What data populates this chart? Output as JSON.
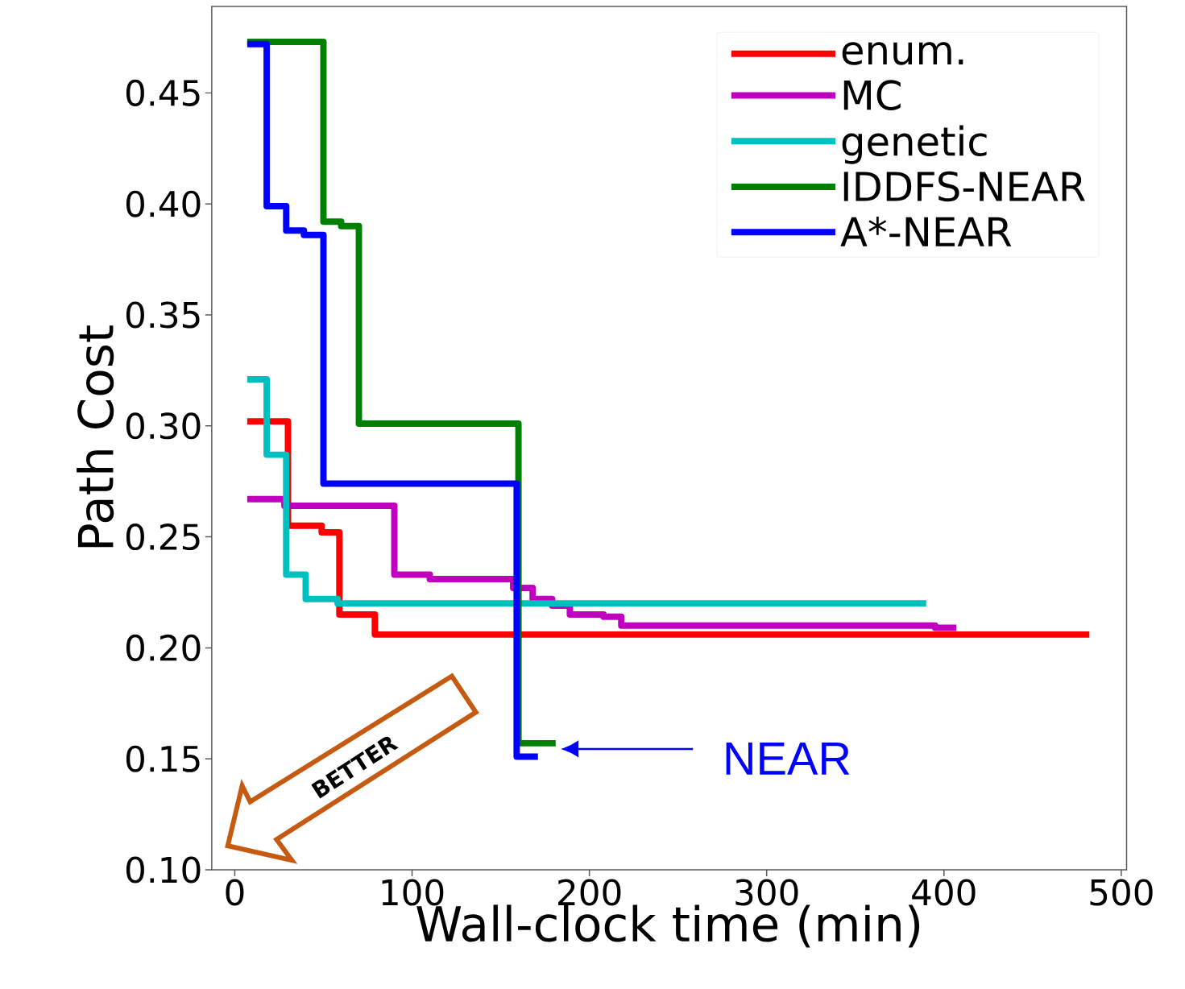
{
  "chart_data": {
    "type": "step",
    "xlabel": "Wall-clock time (min)",
    "ylabel": "Path Cost",
    "xlim": [
      -13,
      503
    ],
    "ylim": [
      0.1,
      0.489
    ],
    "xticks": [
      0,
      100,
      200,
      300,
      400,
      500
    ],
    "yticks": [
      {
        "value": 0.1,
        "label": "0.10"
      },
      0.15,
      {
        "value": 0.2,
        "label": "0.20"
      },
      0.25,
      {
        "value": 0.3,
        "label": "0.30"
      },
      0.35,
      {
        "value": 0.4,
        "label": "0.40"
      },
      0.45
    ],
    "grid": false,
    "legend": "top right",
    "line_style": "solid",
    "marker": "none",
    "series": [
      {
        "name": "enum.",
        "color": "#ff0000",
        "x": [
          7,
          30,
          49,
          59,
          79,
          482
        ],
        "values": [
          0.302,
          0.255,
          0.252,
          0.215,
          0.206,
          0.206
        ]
      },
      {
        "name": "MC",
        "color": "#bf00bf",
        "x": [
          7,
          28,
          90,
          110,
          157,
          168,
          179,
          189,
          208,
          218,
          395,
          407
        ],
        "values": [
          0.267,
          0.264,
          0.233,
          0.231,
          0.227,
          0.222,
          0.219,
          0.215,
          0.214,
          0.21,
          0.209,
          0.209
        ]
      },
      {
        "name": "genetic",
        "color": "#00bfbf",
        "x": [
          7,
          18,
          29,
          40,
          58,
          390
        ],
        "values": [
          0.321,
          0.287,
          0.233,
          0.222,
          0.22,
          0.22
        ]
      },
      {
        "name": "IDDFS-NEAR",
        "color": "#008000",
        "x": [
          7,
          50,
          60,
          70,
          160,
          181
        ],
        "values": [
          0.473,
          0.392,
          0.39,
          0.301,
          0.157,
          0.157
        ]
      },
      {
        "name": "A*-NEAR",
        "color": "#0000ff",
        "x": [
          7,
          18,
          29,
          39,
          50,
          159,
          171
        ],
        "values": [
          0.472,
          0.399,
          0.388,
          0.386,
          0.274,
          0.151,
          0.151
        ]
      }
    ],
    "annotations": [
      "NEAR",
      "BETTER"
    ]
  }
}
